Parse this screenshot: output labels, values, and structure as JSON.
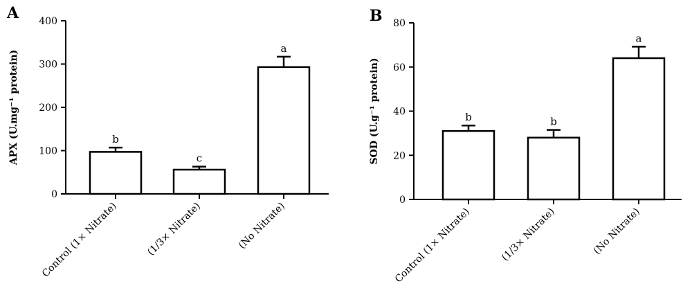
{
  "chart_data": [
    {
      "panel": "A",
      "type": "bar",
      "ylabel": "APX (U.mg⁻¹ protein)",
      "ylim": [
        0,
        400
      ],
      "yticks": [
        0,
        100,
        200,
        300,
        400
      ],
      "categories": [
        "Control (1× Nitrate)",
        "(1/3× Nitrate)",
        "(No Nitrate)"
      ],
      "values": [
        97,
        56,
        293
      ],
      "errors": [
        10,
        7,
        24
      ],
      "letters": [
        "b",
        "c",
        "a"
      ]
    },
    {
      "panel": "B",
      "type": "bar",
      "ylabel": "SOD (U.g⁻¹ protein)",
      "ylim": [
        0,
        80
      ],
      "yticks": [
        0,
        20,
        40,
        60,
        80
      ],
      "categories": [
        "Control (1× Nitrate)",
        "(1/3× Nitrate)",
        "(No Nitrate)"
      ],
      "values": [
        31,
        28,
        64
      ],
      "errors": [
        2.5,
        3.5,
        5.2
      ],
      "letters": [
        "b",
        "b",
        "a"
      ]
    }
  ]
}
